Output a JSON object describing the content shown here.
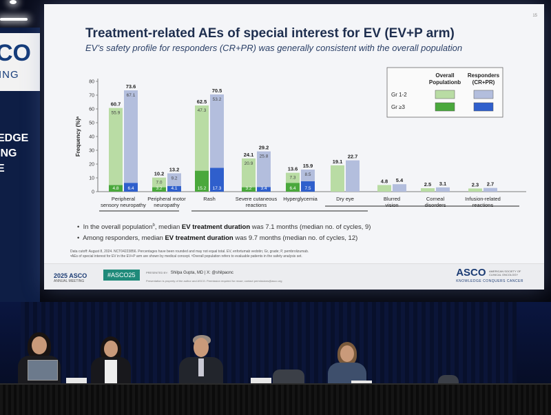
{
  "slide": {
    "page_number": "15",
    "title": "Treatment-related AEs of special interest for EV (EV+P arm)",
    "subtitle": "EV’s safety profile for responders (CR+PR) was generally consistent with the overall population",
    "bullets": [
      {
        "pre": "In the overall population",
        "sup": "b",
        "mid": ", median ",
        "bold": "EV treatment duration",
        "post": " was 7.1 months (median no. of cycles, 9)"
      },
      {
        "pre": "Among responders, median ",
        "sup": "",
        "mid": "",
        "bold": "EV treatment duration",
        "post": " was 9.7 months (median no. of cycles, 12)"
      }
    ],
    "footnotes": [
      "Data cutoff: August 8, 2024. NCT04223856. Percentages have been rounded and may not equal total. EV, enfortumab vedotin; Gr, grade; P, pembrolizumab.",
      "ᵃAEs of special interest for EV in the EV+P arm are shown by medical concept. ᵇOverall population refers to evaluable patients in the safety analysis set."
    ],
    "footer": {
      "meeting_year": "2025",
      "meeting_org": "ASCO",
      "meeting_sub": "ANNUAL MEETING",
      "hashtag": "#ASCO25",
      "presented_by_label": "PRESENTED BY:",
      "presenter": "Shilpa Gupta, MD | X: @shilpaonc",
      "property_note": "Presentation is property of the author and ASCO. Permission required for reuse; contact permissions@asco.org",
      "logo": "ASCO",
      "logo_sub": "AMERICAN SOCIETY OF CLINICAL ONCOLOGY",
      "logo_tag": "KNOWLEDGE CONQUERS CANCER"
    }
  },
  "chart_data": {
    "type": "bar",
    "ylabel": "Frequency (%)ᵃ",
    "ylim": [
      0,
      80
    ],
    "yticks": [
      0,
      10,
      20,
      30,
      40,
      50,
      60,
      70,
      80
    ],
    "legend": {
      "col_overall": "Overall",
      "col_overall2": "Population",
      "col_overall_sup": "b",
      "col_resp": "Responders",
      "col_resp2": "(CR+PR)",
      "row1": "Gr 1-2",
      "row2": "Gr ≥3",
      "placement": "top-right"
    },
    "colors": {
      "overall_gr12": "#b9dca4",
      "overall_gr3": "#4aa83c",
      "resp_gr12": "#b3bedd",
      "resp_gr3": "#2f5fcc"
    },
    "categories": [
      {
        "label": [
          "Peripheral",
          "sensory neuropathy"
        ],
        "overall": {
          "total": "60.7",
          "gr12": 55.9,
          "gr3": 4.8
        },
        "resp": {
          "total": "73.6",
          "gr12": 67.1,
          "gr3": 6.4
        }
      },
      {
        "label": [
          "Peripheral motor",
          "neuropathy"
        ],
        "overall": {
          "total": "10.2",
          "gr12": 7.0,
          "gr3": 3.2
        },
        "resp": {
          "total": "13.2",
          "gr12": 9.2,
          "gr3": 4.1
        }
      },
      {
        "label": [
          "Rash"
        ],
        "overall": {
          "total": "62.5",
          "gr12": 47.3,
          "gr3": 15.2
        },
        "resp": {
          "total": "70.5",
          "gr12": 53.2,
          "gr3": 17.3
        }
      },
      {
        "label": [
          "Severe cutaneous",
          "reactions"
        ],
        "overall": {
          "total": "24.1",
          "gr12": 20.9,
          "gr3": 3.2
        },
        "resp": {
          "total": "29.2",
          "gr12": 25.8,
          "gr3": 3.4
        }
      },
      {
        "label": [
          "Hyperglycemia"
        ],
        "overall": {
          "total": "13.6",
          "gr12": 7.3,
          "gr3": 6.4
        },
        "resp": {
          "total": "15.9",
          "gr12": 8.5,
          "gr3": 7.5
        }
      },
      {
        "label": [
          "Dry eye"
        ],
        "overall": {
          "total": "19.1",
          "gr12": 19.1,
          "gr3": 0
        },
        "resp": {
          "total": "22.7",
          "gr12": 22.7,
          "gr3": 0
        }
      },
      {
        "label": [
          "Blurred",
          "vision"
        ],
        "overall": {
          "total": "4.8",
          "gr12": 4.8,
          "gr3": 0
        },
        "resp": {
          "total": "5.4",
          "gr12": 5.4,
          "gr3": 0
        }
      },
      {
        "label": [
          "Corneal",
          "disorders"
        ],
        "overall": {
          "total": "2.5",
          "gr12": 2.5,
          "gr3": 0
        },
        "resp": {
          "total": "3.1",
          "gr12": 3.1,
          "gr3": 0
        }
      },
      {
        "label": [
          "Infusion-related",
          "reactions"
        ],
        "overall": {
          "total": "2.3",
          "gr12": 2.3,
          "gr3": 0
        },
        "resp": {
          "total": "2.7",
          "gr12": 2.7,
          "gr3": 0
        }
      }
    ]
  },
  "background": {
    "banner_logo": "CO",
    "banner_logo_sub": "ING",
    "banner_lines": [
      "EDGE",
      "ING",
      "E"
    ]
  }
}
